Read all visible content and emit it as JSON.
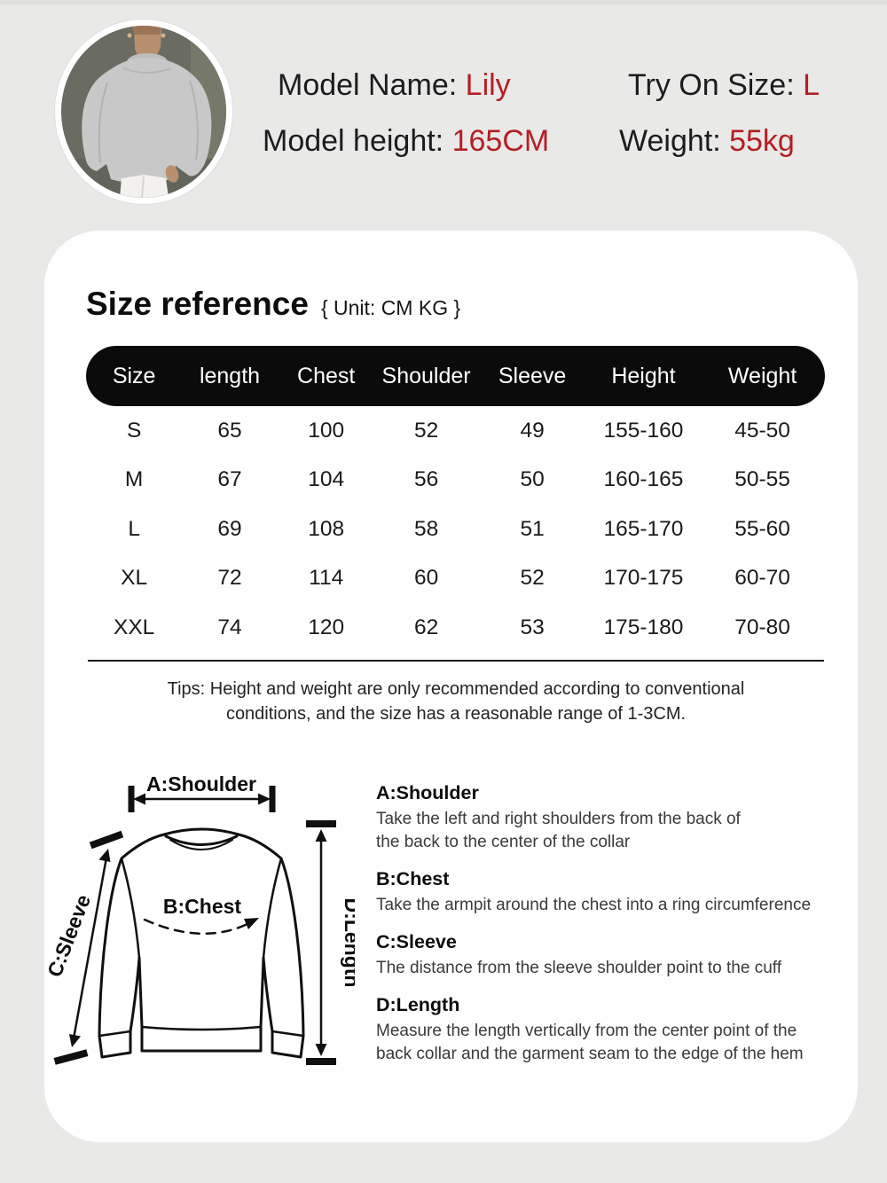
{
  "colors": {
    "background": "#e9e9e8",
    "card": "#fefefe",
    "accent_red": "#b41f24",
    "table_header_bg": "#0b0b0b",
    "text_dark": "#1c1c1c"
  },
  "model_info": {
    "photo": "circular-model-photo-grey-sweatshirt",
    "name_label": "Model Name:",
    "name_value": "Lily",
    "tryon_label": "Try On Size:",
    "tryon_value": "L",
    "height_label": "Model height:",
    "height_value": "165CM",
    "weight_label": "Weight:",
    "weight_value": "55kg"
  },
  "size_reference": {
    "title": "Size reference",
    "unit_note": "{ Unit: CM KG }",
    "table": {
      "columns": [
        "Size",
        "length",
        "Chest",
        "Shoulder",
        "Sleeve",
        "Height",
        "Weight"
      ],
      "rows": [
        [
          "S",
          "65",
          "100",
          "52",
          "49",
          "155-160",
          "45-50"
        ],
        [
          "M",
          "67",
          "104",
          "56",
          "50",
          "160-165",
          "50-55"
        ],
        [
          "L",
          "69",
          "108",
          "58",
          "51",
          "165-170",
          "55-60"
        ],
        [
          "XL",
          "72",
          "114",
          "60",
          "52",
          "170-175",
          "60-70"
        ],
        [
          "XXL",
          "74",
          "120",
          "62",
          "53",
          "175-180",
          "70-80"
        ]
      ]
    },
    "tips_line1": "Tips: Height and weight are only recommended according to conventional",
    "tips_line2": "conditions, and the size has a reasonable range of 1-3CM."
  },
  "measure_diagram": {
    "shoulder_label": "A:Shoulder",
    "chest_label": "B:Chest",
    "sleeve_label": "C:Sleeve",
    "length_label": "D:Length"
  },
  "measure_guide": {
    "sections": [
      {
        "title": "A:Shoulder",
        "lines": [
          "Take the left and right shoulders from the back of",
          "the back to the center of the collar"
        ]
      },
      {
        "title": "B:Chest",
        "lines": [
          "Take the armpit around the chest into a ring circumference"
        ]
      },
      {
        "title": "C:Sleeve",
        "lines": [
          "The distance from the sleeve shoulder point to the cuff"
        ]
      },
      {
        "title": "D:Length",
        "lines": [
          "Measure the length vertically from the center point of the",
          "back collar and the garment seam to the edge of the hem"
        ]
      }
    ]
  }
}
